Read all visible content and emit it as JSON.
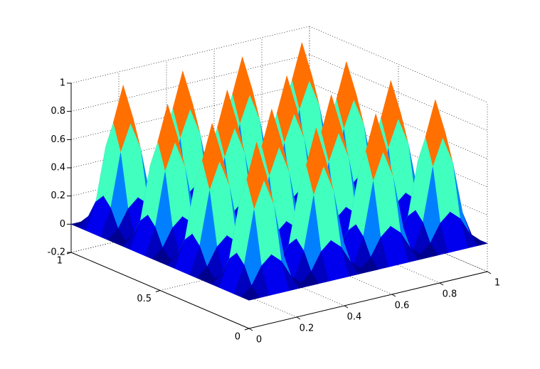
{
  "chart_data": {
    "type": "surface",
    "colormap": "jet",
    "grid": true,
    "x": [
      0,
      0.0417,
      0.0833,
      0.125,
      0.1667,
      0.2083,
      0.25,
      0.2917,
      0.3333,
      0.375,
      0.4167,
      0.4583,
      0.5,
      0.5417,
      0.5833,
      0.625,
      0.6667,
      0.7083,
      0.75,
      0.7917,
      0.8333,
      0.875,
      0.9167,
      0.9583,
      1
    ],
    "y": [
      0,
      0.0417,
      0.0833,
      0.125,
      0.1667,
      0.2083,
      0.25,
      0.2917,
      0.3333,
      0.375,
      0.4167,
      0.4583,
      0.5,
      0.5417,
      0.5833,
      0.625,
      0.6667,
      0.7083,
      0.75,
      0.7917,
      0.8333,
      0.875,
      0.9167,
      0.9583,
      1
    ],
    "z": [
      [
        0,
        0,
        0,
        0,
        0,
        0,
        0,
        0,
        0,
        0,
        0,
        0,
        0,
        0,
        0,
        0,
        0,
        0,
        0,
        0,
        0,
        0,
        0,
        0,
        0
      ],
      [
        0,
        0.0625,
        0.1875,
        0.25,
        0.1875,
        0.0625,
        0,
        0.0625,
        0.1875,
        0.25,
        0.1875,
        0.0625,
        0,
        0.0625,
        0.1875,
        0.25,
        0.1875,
        0.0625,
        0,
        0.0625,
        0.1875,
        0.25,
        0.1875,
        0.0625,
        0
      ],
      [
        0,
        0.1875,
        0.5625,
        0.75,
        0.5625,
        0.1875,
        0,
        0.1875,
        0.5625,
        0.75,
        0.5625,
        0.1875,
        0,
        0.1875,
        0.5625,
        0.75,
        0.5625,
        0.1875,
        0,
        0.1875,
        0.5625,
        0.75,
        0.5625,
        0.1875,
        0
      ],
      [
        0,
        0.25,
        0.75,
        1,
        0.75,
        0.25,
        0,
        0.25,
        0.75,
        1,
        0.75,
        0.25,
        0,
        0.25,
        0.75,
        1,
        0.75,
        0.25,
        0,
        0.25,
        0.75,
        1,
        0.75,
        0.25,
        0
      ],
      [
        0,
        0.1875,
        0.5625,
        0.75,
        0.5625,
        0.1875,
        0,
        0.1875,
        0.5625,
        0.75,
        0.5625,
        0.1875,
        0,
        0.1875,
        0.5625,
        0.75,
        0.5625,
        0.1875,
        0,
        0.1875,
        0.5625,
        0.75,
        0.5625,
        0.1875,
        0
      ],
      [
        0,
        0.0625,
        0.1875,
        0.25,
        0.1875,
        0.0625,
        0,
        0.0625,
        0.1875,
        0.25,
        0.1875,
        0.0625,
        0,
        0.0625,
        0.1875,
        0.25,
        0.1875,
        0.0625,
        0,
        0.0625,
        0.1875,
        0.25,
        0.1875,
        0.0625,
        0
      ],
      [
        0,
        0,
        0,
        0,
        0,
        0,
        0,
        0,
        0,
        0,
        0,
        0,
        0,
        0,
        0,
        0,
        0,
        0,
        0,
        0,
        0,
        0,
        0,
        0,
        0
      ],
      [
        0,
        0.0625,
        0.1875,
        0.25,
        0.1875,
        0.0625,
        0,
        0.0625,
        0.1875,
        0.25,
        0.1875,
        0.0625,
        0,
        0.0625,
        0.1875,
        0.25,
        0.1875,
        0.0625,
        0,
        0.0625,
        0.1875,
        0.25,
        0.1875,
        0.0625,
        0
      ],
      [
        0,
        0.1875,
        0.5625,
        0.75,
        0.5625,
        0.1875,
        0,
        0.1875,
        0.5625,
        0.75,
        0.5625,
        0.1875,
        0,
        0.1875,
        0.5625,
        0.75,
        0.5625,
        0.1875,
        0,
        0.1875,
        0.5625,
        0.75,
        0.5625,
        0.1875,
        0
      ],
      [
        0,
        0.25,
        0.75,
        1,
        0.75,
        0.25,
        0,
        0.25,
        0.75,
        1,
        0.75,
        0.25,
        0,
        0.25,
        0.75,
        1,
        0.75,
        0.25,
        0,
        0.25,
        0.75,
        1,
        0.75,
        0.25,
        0
      ],
      [
        0,
        0.1875,
        0.5625,
        0.75,
        0.5625,
        0.1875,
        0,
        0.1875,
        0.5625,
        0.75,
        0.5625,
        0.1875,
        0,
        0.1875,
        0.5625,
        0.75,
        0.5625,
        0.1875,
        0,
        0.1875,
        0.5625,
        0.75,
        0.5625,
        0.1875,
        0
      ],
      [
        0,
        0.0625,
        0.1875,
        0.25,
        0.1875,
        0.0625,
        0,
        0.0625,
        0.1875,
        0.25,
        0.1875,
        0.0625,
        0,
        0.0625,
        0.1875,
        0.25,
        0.1875,
        0.0625,
        0,
        0.0625,
        0.1875,
        0.25,
        0.1875,
        0.0625,
        0
      ],
      [
        0,
        0,
        0,
        0,
        0,
        0,
        0,
        0,
        0,
        0,
        0,
        0,
        0,
        0,
        0,
        0,
        0,
        0,
        0,
        0,
        0,
        0,
        0,
        0,
        0
      ],
      [
        0,
        0.0625,
        0.1875,
        0.25,
        0.1875,
        0.0625,
        0,
        0.0625,
        0.1875,
        0.25,
        0.1875,
        0.0625,
        0,
        0.0625,
        0.1875,
        0.25,
        0.1875,
        0.0625,
        0,
        0.0625,
        0.1875,
        0.25,
        0.1875,
        0.0625,
        0
      ],
      [
        0,
        0.1875,
        0.5625,
        0.75,
        0.5625,
        0.1875,
        0,
        0.1875,
        0.5625,
        0.75,
        0.5625,
        0.1875,
        0,
        0.1875,
        0.5625,
        0.75,
        0.5625,
        0.1875,
        0,
        0.1875,
        0.5625,
        0.75,
        0.5625,
        0.1875,
        0
      ],
      [
        0,
        0.25,
        0.75,
        1,
        0.75,
        0.25,
        0,
        0.25,
        0.75,
        1,
        0.75,
        0.25,
        0,
        0.25,
        0.75,
        1,
        0.75,
        0.25,
        0,
        0.25,
        0.75,
        1,
        0.75,
        0.25,
        0
      ],
      [
        0,
        0.1875,
        0.5625,
        0.75,
        0.5625,
        0.1875,
        0,
        0.1875,
        0.5625,
        0.75,
        0.5625,
        0.1875,
        0,
        0.1875,
        0.5625,
        0.75,
        0.5625,
        0.1875,
        0,
        0.1875,
        0.5625,
        0.75,
        0.5625,
        0.1875,
        0
      ],
      [
        0,
        0.0625,
        0.1875,
        0.25,
        0.1875,
        0.0625,
        0,
        0.0625,
        0.1875,
        0.25,
        0.1875,
        0.0625,
        0,
        0.0625,
        0.1875,
        0.25,
        0.1875,
        0.0625,
        0,
        0.0625,
        0.1875,
        0.25,
        0.1875,
        0.0625,
        0
      ],
      [
        0,
        0,
        0,
        0,
        0,
        0,
        0,
        0,
        0,
        0,
        0,
        0,
        0,
        0,
        0,
        0,
        0,
        0,
        0,
        0,
        0,
        0,
        0,
        0,
        0
      ],
      [
        0,
        0.0625,
        0.1875,
        0.25,
        0.1875,
        0.0625,
        0,
        0.0625,
        0.1875,
        0.25,
        0.1875,
        0.0625,
        0,
        0.0625,
        0.1875,
        0.25,
        0.1875,
        0.0625,
        0,
        0.0625,
        0.1875,
        0.25,
        0.1875,
        0.0625,
        0
      ],
      [
        0,
        0.1875,
        0.5625,
        0.75,
        0.5625,
        0.1875,
        0,
        0.1875,
        0.5625,
        0.75,
        0.5625,
        0.1875,
        0,
        0.1875,
        0.5625,
        0.75,
        0.5625,
        0.1875,
        0,
        0.1875,
        0.5625,
        0.75,
        0.5625,
        0.1875,
        0
      ],
      [
        0,
        0.25,
        0.75,
        1,
        0.75,
        0.25,
        0,
        0.25,
        0.75,
        1,
        0.75,
        0.25,
        0,
        0.25,
        0.75,
        1,
        0.75,
        0.25,
        0,
        0.25,
        0.75,
        1,
        0.75,
        0.25,
        0
      ],
      [
        0,
        0.1875,
        0.5625,
        0.75,
        0.5625,
        0.1875,
        0,
        0.1875,
        0.5625,
        0.75,
        0.5625,
        0.1875,
        0,
        0.1875,
        0.5625,
        0.75,
        0.5625,
        0.1875,
        0,
        0.1875,
        0.5625,
        0.75,
        0.5625,
        0.1875,
        0
      ],
      [
        0,
        0.0625,
        0.1875,
        0.25,
        0.1875,
        0.0625,
        0,
        0.0625,
        0.1875,
        0.25,
        0.1875,
        0.0625,
        0,
        0.0625,
        0.1875,
        0.25,
        0.1875,
        0.0625,
        0,
        0.0625,
        0.1875,
        0.25,
        0.1875,
        0.0625,
        0
      ],
      [
        0,
        0,
        0,
        0,
        0,
        0,
        0,
        0,
        0,
        0,
        0,
        0,
        0,
        0,
        0,
        0,
        0,
        0,
        0,
        0,
        0,
        0,
        0,
        0,
        0
      ]
    ],
    "xlim": [
      0,
      1
    ],
    "ylim": [
      0,
      1
    ],
    "zlim": [
      -0.2,
      1
    ],
    "xticks": [
      0,
      0.2,
      0.4,
      0.6,
      0.8,
      1
    ],
    "yticks": [
      0,
      0.5,
      1
    ],
    "zticks": [
      -0.2,
      0,
      0.2,
      0.4,
      0.6,
      0.8,
      1
    ]
  }
}
